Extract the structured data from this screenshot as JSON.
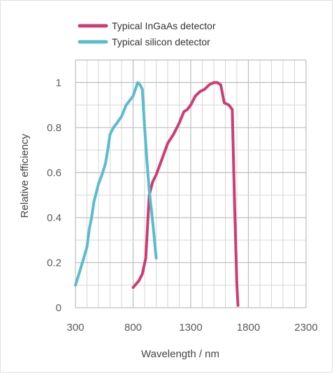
{
  "chart_data": {
    "type": "line",
    "xlabel": "Wavelength / nm",
    "ylabel": "Relative efficiency",
    "xlim": [
      300,
      2300
    ],
    "ylim": [
      0,
      1.1
    ],
    "x_ticks": [
      "300",
      "800",
      "1300",
      "1800",
      "2300"
    ],
    "y_ticks": [
      "0",
      "0.2",
      "0.4",
      "0.6",
      "0.8",
      "1"
    ],
    "grid": true,
    "legend_position": "top",
    "series": [
      {
        "name": "Typical InGaAs detector",
        "color": "#cc3d74",
        "x": [
          800,
          850,
          880,
          910,
          940,
          970,
          1000,
          1050,
          1100,
          1150,
          1200,
          1240,
          1270,
          1300,
          1340,
          1380,
          1420,
          1460,
          1500,
          1530,
          1560,
          1590,
          1630,
          1660,
          1680,
          1700,
          1710
        ],
        "y": [
          0.09,
          0.12,
          0.15,
          0.22,
          0.5,
          0.56,
          0.59,
          0.66,
          0.73,
          0.77,
          0.82,
          0.87,
          0.88,
          0.9,
          0.94,
          0.96,
          0.97,
          0.99,
          1.0,
          1.0,
          0.99,
          0.91,
          0.9,
          0.88,
          0.46,
          0.1,
          0.01
        ]
      },
      {
        "name": "Typical silicon detector",
        "color": "#5bbbd0",
        "x": [
          300,
          330,
          360,
          400,
          420,
          440,
          460,
          480,
          500,
          530,
          560,
          580,
          600,
          630,
          660,
          700,
          740,
          770,
          800,
          820,
          840,
          860,
          880,
          900,
          920,
          940,
          960,
          980,
          1000
        ],
        "y": [
          0.1,
          0.15,
          0.2,
          0.27,
          0.35,
          0.4,
          0.47,
          0.51,
          0.55,
          0.59,
          0.64,
          0.7,
          0.77,
          0.8,
          0.82,
          0.85,
          0.9,
          0.92,
          0.94,
          0.97,
          1.0,
          0.99,
          0.97,
          0.8,
          0.65,
          0.52,
          0.43,
          0.33,
          0.22
        ]
      }
    ]
  }
}
